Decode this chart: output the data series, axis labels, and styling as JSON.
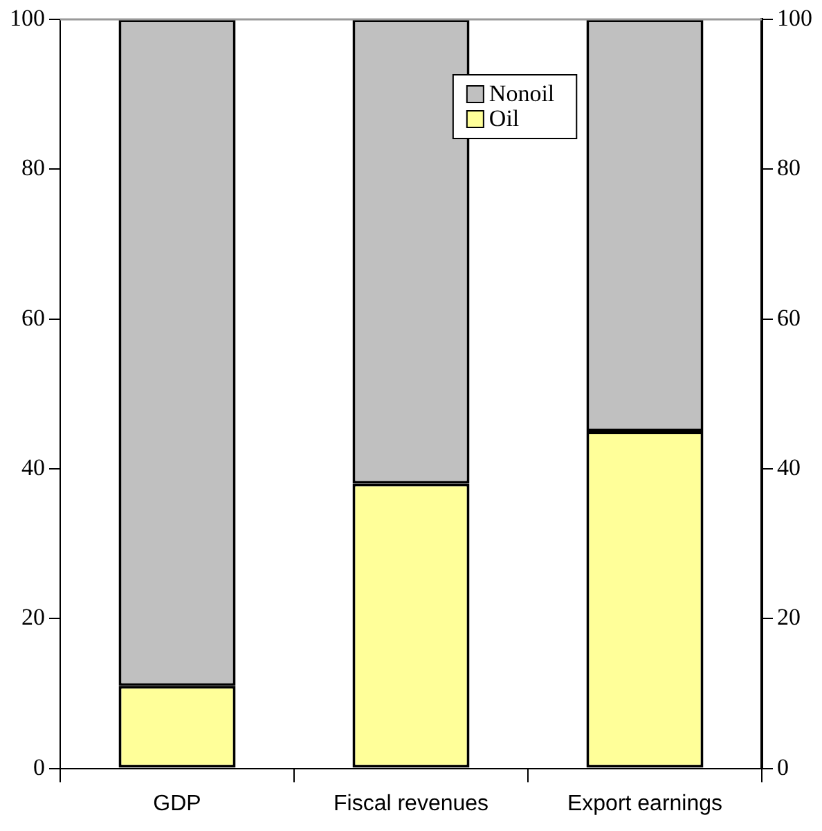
{
  "chart_data": {
    "type": "bar",
    "stacked": true,
    "categories": [
      "GDP",
      "Fiscal revenues",
      "Export earnings"
    ],
    "series": [
      {
        "name": "Oil",
        "color": "#ffff99",
        "values": [
          11,
          38,
          45
        ]
      },
      {
        "name": "Nonoil",
        "color": "#c0c0c0",
        "values": [
          89,
          62,
          55
        ]
      }
    ],
    "ylim": [
      0,
      100
    ],
    "yticks": [
      0,
      20,
      40,
      60,
      80,
      100
    ],
    "y2lim": [
      0,
      100
    ],
    "y2ticks": [
      0,
      20,
      40,
      60,
      80,
      100
    ],
    "grid": false,
    "legend": "top right"
  }
}
